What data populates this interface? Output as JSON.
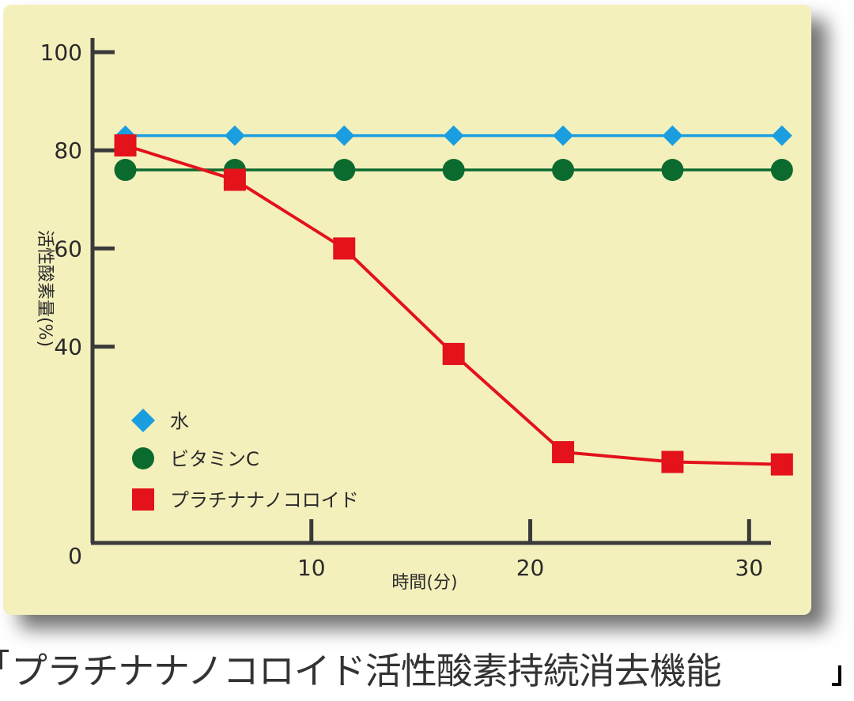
{
  "caption": "プラチナナノコロイド活性酸素持続消去機能",
  "chart_data": {
    "type": "line",
    "title": "",
    "xlabel": "時間(分)",
    "ylabel": "活性酸素量(%)",
    "xlim": [
      0,
      31
    ],
    "ylim": [
      0,
      100
    ],
    "x_ticks": [
      10,
      20,
      30
    ],
    "y_ticks": [
      0,
      40,
      60,
      80,
      100
    ],
    "x": [
      1.5,
      6.5,
      11.5,
      16.5,
      21.5,
      26.5,
      31.5
    ],
    "grid": false,
    "legend_position": "lower-left",
    "series": [
      {
        "name": "水",
        "marker": "diamond",
        "color": "#1a9ee0",
        "values": [
          83,
          83,
          83,
          83,
          83,
          83,
          83
        ]
      },
      {
        "name": "ビタミンC",
        "marker": "circle",
        "color": "#0b6b2e",
        "values": [
          76,
          76,
          76,
          76,
          76,
          76,
          76
        ]
      },
      {
        "name": "プラチナナノコロイド",
        "marker": "square",
        "color": "#e3121b",
        "values": [
          81,
          74,
          60,
          38.5,
          18.5,
          16.5,
          16
        ]
      }
    ]
  }
}
